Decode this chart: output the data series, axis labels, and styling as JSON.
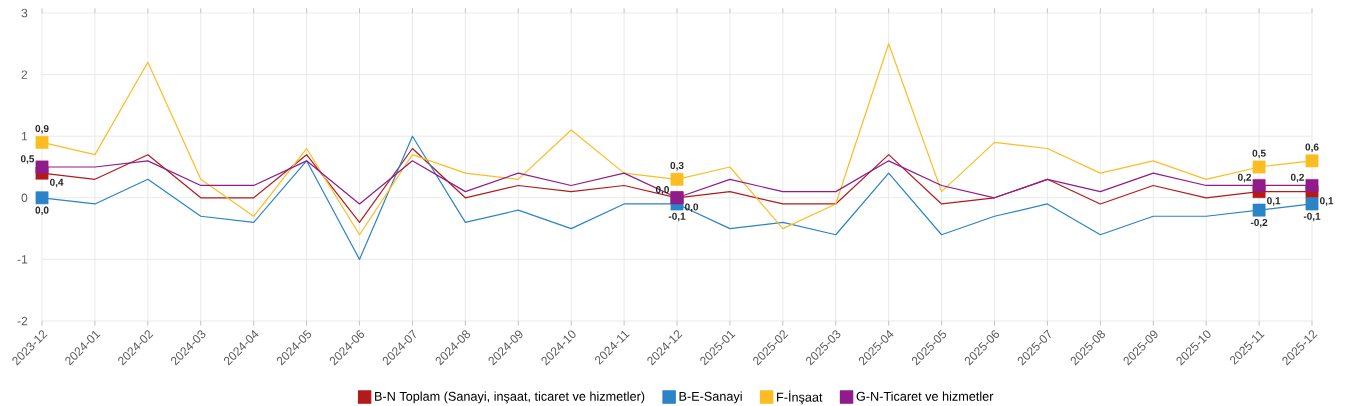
{
  "chart_data": {
    "type": "line",
    "categories": [
      "2023-12",
      "2024-01",
      "2024-02",
      "2024-03",
      "2024-04",
      "2024-05",
      "2024-06",
      "2024-07",
      "2024-08",
      "2024-09",
      "2024-10",
      "2024-11",
      "2024-12",
      "2025-01",
      "2025-02",
      "2025-03",
      "2025-04",
      "2025-05",
      "2025-06",
      "2025-07",
      "2025-08",
      "2025-09",
      "2025-10",
      "2025-11",
      "2025-12"
    ],
    "series": [
      {
        "name": "B-N Toplam (Sanayi, inşaat, ticaret ve hizmetler)",
        "color": "#b31b1b",
        "values": [
          0.4,
          0.3,
          0.7,
          0.0,
          0.0,
          0.7,
          -0.4,
          0.8,
          0.0,
          0.2,
          0.1,
          0.2,
          0.0,
          0.1,
          -0.1,
          -0.1,
          0.7,
          -0.1,
          0.0,
          0.3,
          -0.1,
          0.2,
          0.0,
          0.1,
          0.1
        ],
        "value_labels": [
          "0,4",
          null,
          null,
          null,
          null,
          null,
          null,
          null,
          null,
          null,
          null,
          null,
          "0,0",
          null,
          null,
          null,
          null,
          null,
          null,
          null,
          null,
          null,
          null,
          "0,1",
          "0,1"
        ]
      },
      {
        "name": "B-E-Sanayi",
        "color": "#2b83c8",
        "values": [
          0.0,
          -0.1,
          0.3,
          -0.3,
          -0.4,
          0.6,
          -1.0,
          1.0,
          -0.4,
          -0.2,
          -0.5,
          -0.1,
          -0.1,
          -0.5,
          -0.4,
          -0.6,
          0.4,
          -0.6,
          -0.3,
          -0.1,
          -0.6,
          -0.3,
          -0.3,
          -0.2,
          -0.1
        ],
        "value_labels": [
          "0,0",
          null,
          null,
          null,
          null,
          null,
          null,
          null,
          null,
          null,
          null,
          null,
          "-0,1",
          null,
          null,
          null,
          null,
          null,
          null,
          null,
          null,
          null,
          null,
          "-0,2",
          "-0,1"
        ]
      },
      {
        "name": "F-İnşaat",
        "color": "#fbbd22",
        "values": [
          0.9,
          0.7,
          2.2,
          0.3,
          -0.3,
          0.8,
          -0.6,
          0.7,
          0.4,
          0.3,
          1.1,
          0.4,
          0.3,
          0.5,
          -0.5,
          -0.1,
          2.5,
          0.1,
          0.9,
          0.8,
          0.4,
          0.6,
          0.3,
          0.5,
          0.6
        ],
        "value_labels": [
          "0,9",
          null,
          null,
          null,
          null,
          null,
          null,
          null,
          null,
          null,
          null,
          null,
          "0,3",
          null,
          null,
          null,
          null,
          null,
          null,
          null,
          null,
          null,
          null,
          "0,5",
          "0,6"
        ]
      },
      {
        "name": "G-N-Ticaret ve hizmetler",
        "color": "#8f1c8a",
        "values": [
          0.5,
          0.5,
          0.6,
          0.2,
          0.2,
          0.6,
          -0.1,
          0.6,
          0.1,
          0.4,
          0.2,
          0.4,
          0.0,
          0.3,
          0.1,
          0.1,
          0.6,
          0.2,
          0.0,
          0.3,
          0.1,
          0.4,
          0.2,
          0.2,
          0.2
        ],
        "value_labels": [
          "0,5",
          null,
          null,
          null,
          null,
          null,
          null,
          null,
          null,
          null,
          null,
          null,
          "0,0",
          null,
          null,
          null,
          null,
          null,
          null,
          null,
          null,
          null,
          null,
          "0,2",
          "0,2"
        ]
      }
    ],
    "ylim": [
      -2,
      3
    ],
    "yticks": [
      -2,
      -1,
      0,
      1,
      2,
      3
    ],
    "grid": true,
    "legend": "bottom"
  }
}
